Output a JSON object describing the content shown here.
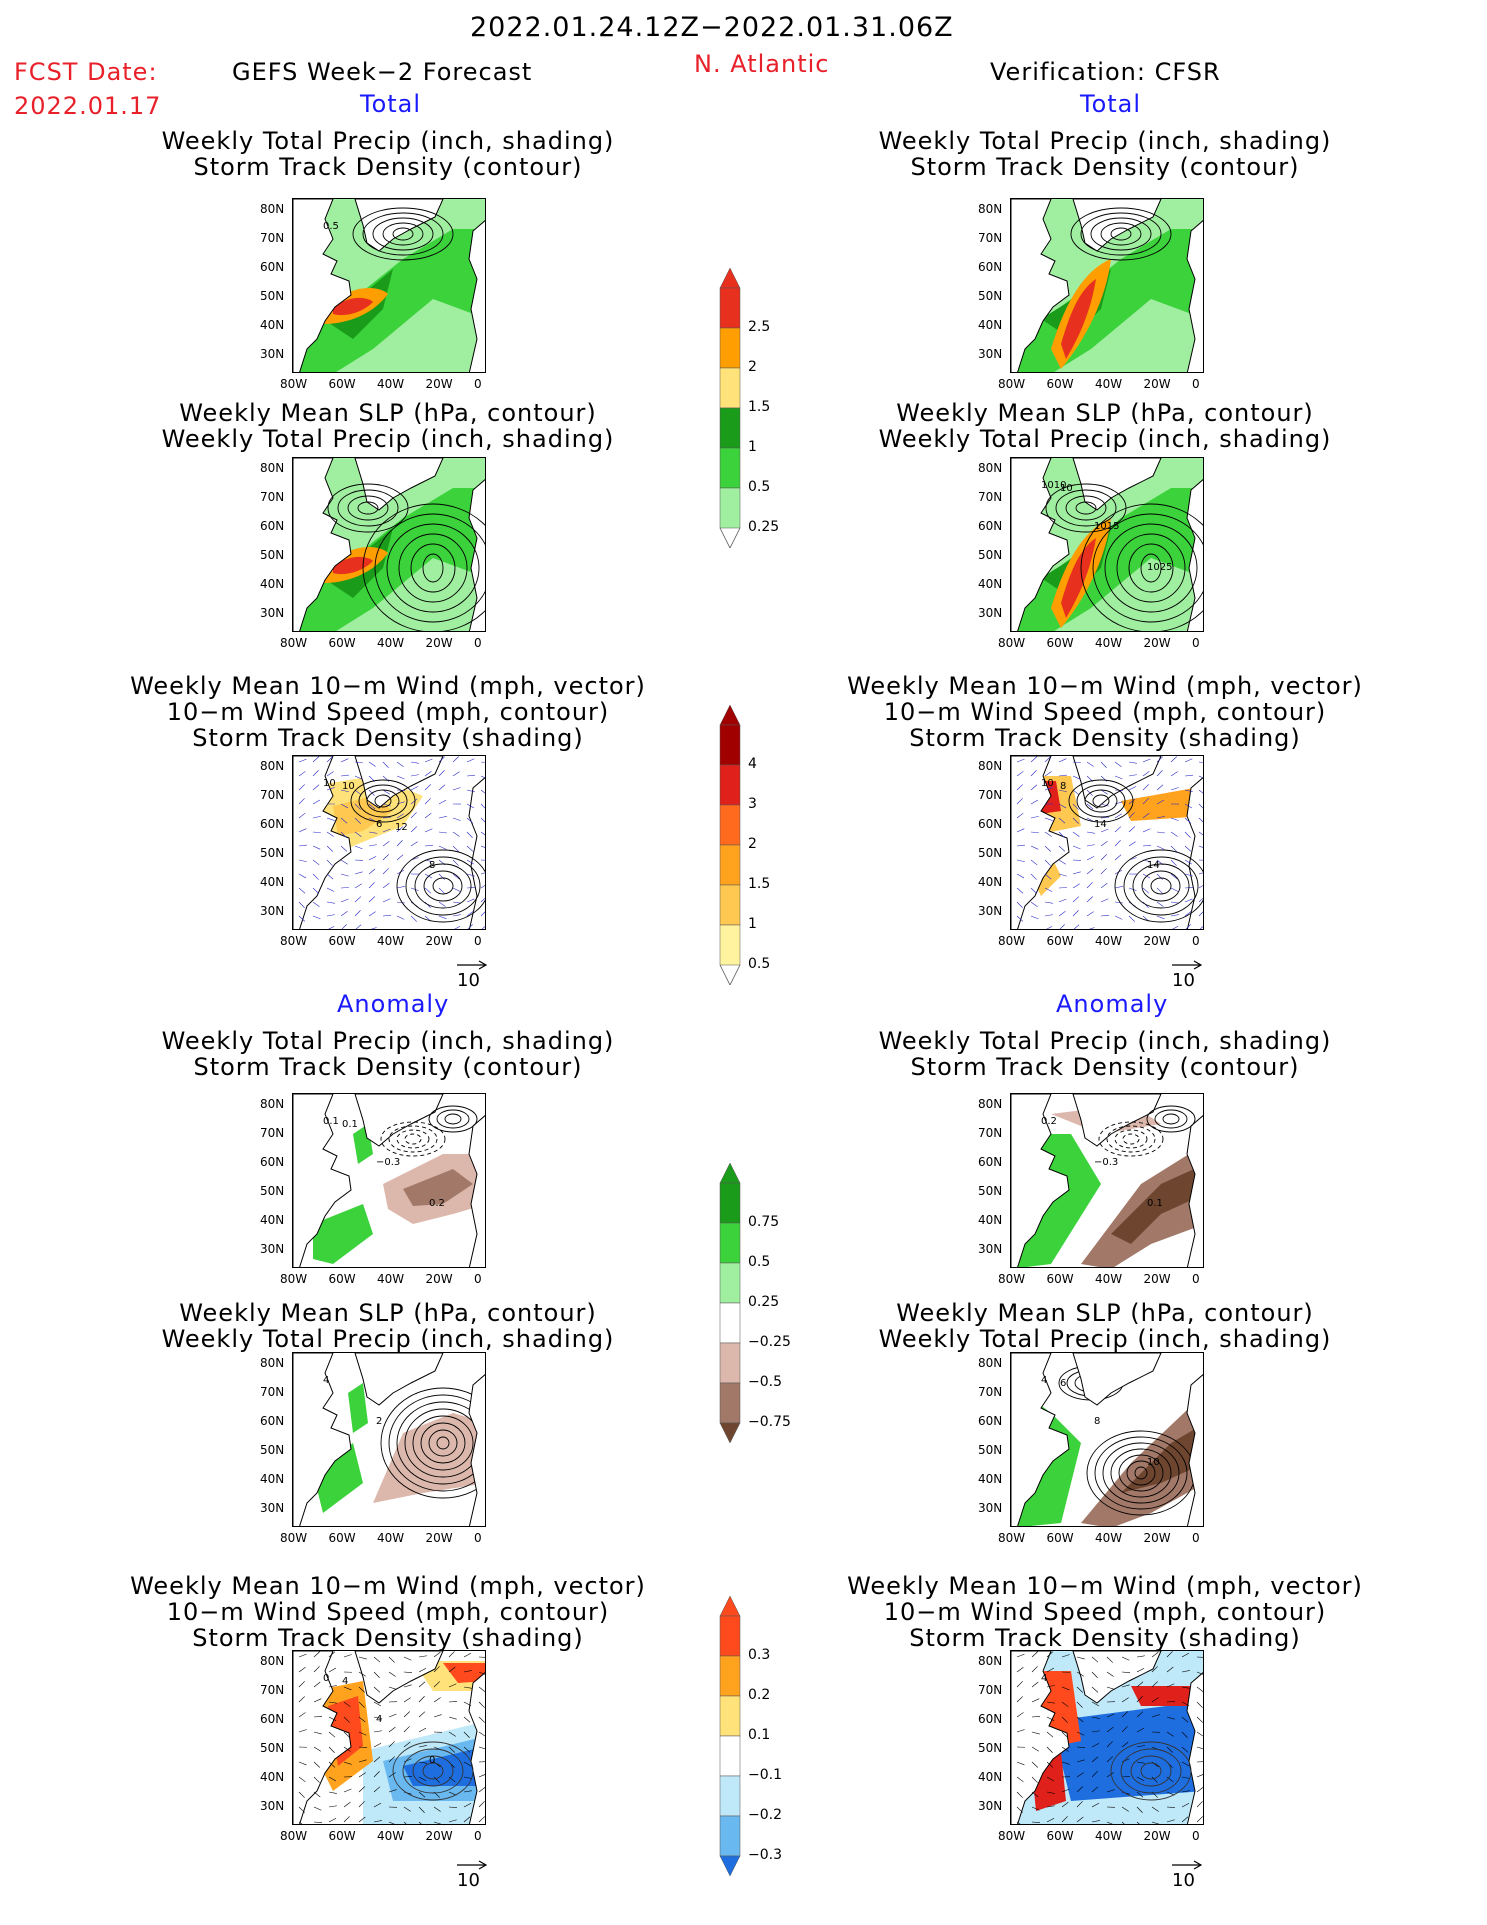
{
  "header": {
    "period": "2022.01.24.12Z−2022.01.31.06Z",
    "fcst_label": "FCST Date:",
    "fcst_date": "2022.01.17",
    "model": "GEFS Week−2 Forecast",
    "region": "N. Atlantic",
    "verification": "Verification: CFSR"
  },
  "sections": {
    "total_left": "Total",
    "total_right": "Total",
    "anomaly_left": "Anomaly",
    "anomaly_right": "Anomaly"
  },
  "panels": {
    "precip_track": [
      "Weekly Total Precip (inch, shading)",
      "Storm Track Density (contour)"
    ],
    "slp_precip": [
      "Weekly Mean SLP (hPa, contour)",
      "Weekly Total Precip (inch, shading)"
    ],
    "wind_track": [
      "Weekly Mean 10−m Wind (mph, vector)",
      "10−m Wind Speed (mph, contour)",
      "Storm Track Density (shading)"
    ]
  },
  "axes": {
    "lat": [
      "80N",
      "70N",
      "60N",
      "50N",
      "40N",
      "30N"
    ],
    "lon": [
      "80W",
      "60W",
      "40W",
      "20W",
      "0"
    ]
  },
  "vector_ref": "10",
  "colorbars": {
    "total_precip": {
      "labels": [
        "2.5",
        "2",
        "1.5",
        "1",
        "0.5",
        "0.25"
      ],
      "colors": [
        "#e8301e",
        "#ff9e00",
        "#ffe27a",
        "#1a9c1a",
        "#3cd23c",
        "#a0eea0"
      ]
    },
    "total_track": {
      "labels": [
        "4",
        "3",
        "2",
        "1.5",
        "1",
        "0.5"
      ],
      "colors": [
        "#a00000",
        "#e0201a",
        "#ff6a1e",
        "#ffa21e",
        "#ffc850",
        "#fff3a0"
      ]
    },
    "anom_precip": {
      "labels": [
        "0.75",
        "0.5",
        "0.25",
        "−0.25",
        "−0.5",
        "−0.75"
      ],
      "colors_pos": [
        "#1a9c1a",
        "#3cd23c",
        "#a0eea0"
      ],
      "colors_neg": [
        "#dcb8ac",
        "#a27868",
        "#6e4630"
      ]
    },
    "anom_track": {
      "labels": [
        "0.3",
        "0.2",
        "0.1",
        "−0.1",
        "−0.2",
        "−0.3"
      ],
      "colors_pos": [
        "#ff4a1e",
        "#ffa21e",
        "#ffe27a"
      ],
      "colors_neg": [
        "#bfe8f8",
        "#6ab8f0",
        "#1e6ee0"
      ]
    }
  },
  "map_labels": {
    "r1_left": "0.5",
    "r2_right": [
      "1010",
      "1015",
      "1025",
      "10"
    ],
    "r3_left": [
      "10",
      "6",
      "8",
      "10",
      "12"
    ],
    "r3_right": [
      "10",
      "14",
      "14",
      "8"
    ],
    "r4_left": [
      "0.1",
      "−0.3",
      "0.2",
      "0.1"
    ],
    "r4_right": [
      "0.2",
      "−0.3",
      "0.1"
    ],
    "r5_left": [
      "4",
      "2"
    ],
    "r5_right": [
      "4",
      "8",
      "10",
      "6"
    ],
    "r6_left": [
      "0",
      "4",
      "0",
      "4"
    ],
    "r6_right": [
      "4"
    ]
  },
  "colors": {
    "land": "#ffffff",
    "lightgreen": "#a0eea0",
    "green": "#3cd23c",
    "darkgreen": "#1a9c1a",
    "yellow": "#ffe27a",
    "orange": "#ff9e00",
    "red": "#e8301e",
    "vector": "#2a2ac8"
  }
}
